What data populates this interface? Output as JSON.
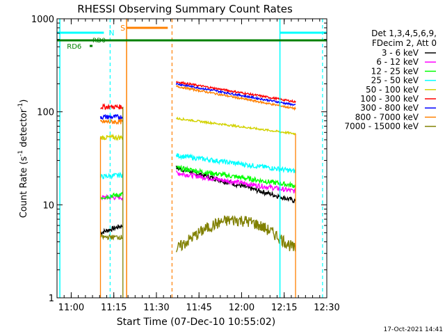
{
  "chart_data": {
    "type": "line",
    "title": "RHESSI Observing Summary Count Rates",
    "xlabel": "Start Time (07-Dec-10 10:55:02)",
    "ylabel_main": "Count Rate (s",
    "ylabel_sup1": "-1",
    "ylabel_mid": " detector",
    "ylabel_sup2": "-1",
    "ylabel_end": ")",
    "y_scale": "log",
    "ylim": [
      1,
      1000
    ],
    "xlim_minutes": [
      0,
      95
    ],
    "x_ticks": [
      {
        "label": "11:00",
        "minute": 5
      },
      {
        "label": "11:15",
        "minute": 20
      },
      {
        "label": "11:30",
        "minute": 35
      },
      {
        "label": "11:45",
        "minute": 50
      },
      {
        "label": "12:00",
        "minute": 65
      },
      {
        "label": "12:15",
        "minute": 80
      },
      {
        "label": "12:30",
        "minute": 95
      }
    ],
    "y_ticks": [
      {
        "label": "1",
        "value": 1
      },
      {
        "label": "10",
        "value": 10
      },
      {
        "label": "100",
        "value": 100
      },
      {
        "label": "1000",
        "value": 1000
      }
    ],
    "legend_header": [
      "Det 1,3,4,5,6,9,",
      "FDecim 2, Att 0"
    ],
    "series": [
      {
        "name": "3 - 6 keV",
        "color": "#000000",
        "seg1": [
          5,
          6
        ],
        "seg2_start": 25,
        "seg2_end": 11
      },
      {
        "name": "6 - 12 keV",
        "color": "#ff00ff",
        "seg1": [
          12,
          12
        ],
        "seg2_start": 22,
        "seg2_end": 14
      },
      {
        "name": "12 - 25 keV",
        "color": "#00ff00",
        "seg1": [
          12,
          13
        ],
        "seg2_start": 25,
        "seg2_end": 16
      },
      {
        "name": "25 - 50 keV",
        "color": "#00ffff",
        "seg1": [
          20,
          21
        ],
        "seg2_start": 34,
        "seg2_end": 23
      },
      {
        "name": "50 - 100 keV",
        "color": "#d2d200",
        "seg1": [
          53,
          53
        ],
        "seg2_start": 85,
        "seg2_end": 58
      },
      {
        "name": "100 - 300 keV",
        "color": "#ff0000",
        "seg1": [
          113,
          113
        ],
        "seg2_start": 210,
        "seg2_end": 128
      },
      {
        "name": "300 - 800 keV",
        "color": "#0000ff",
        "seg1": [
          88,
          88
        ],
        "seg2_start": 200,
        "seg2_end": 118
      },
      {
        "name": "800 - 7000 keV",
        "color": "#ff8000",
        "seg1": [
          78,
          78
        ],
        "seg2_start": 188,
        "seg2_end": 108
      },
      {
        "name": "7000 - 15000 keV",
        "color": "#808000",
        "seg1": [
          4.5,
          4.5
        ],
        "seg2_start": 3.3,
        "seg2_end": 4.5
      }
    ],
    "flags": [
      {
        "label": "N",
        "color": "#00ffff"
      },
      {
        "label": "S",
        "color": "#ff8000"
      },
      {
        "label": "RD0",
        "color": "#008000"
      },
      {
        "label": "RD6",
        "color": "#008000"
      }
    ],
    "footer_date": "17-Oct-2021 14:41"
  }
}
